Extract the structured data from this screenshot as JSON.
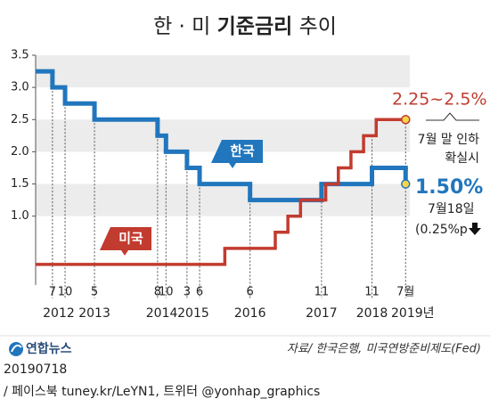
{
  "chart_data": {
    "type": "step",
    "title": [
      "한 · 미",
      "기준금리",
      "추이"
    ],
    "xlim": [
      "2012-03",
      "2019-08"
    ],
    "ylim": [
      0,
      3.5
    ],
    "yticks": [
      {
        "value": 1,
        "label": "1.0"
      },
      1.5,
      {
        "value": 2,
        "label": "2.0"
      },
      2.5,
      {
        "value": 3,
        "label": "3.0"
      },
      3.5
    ],
    "xticks": [
      {
        "value": "2012-07",
        "label": "7"
      },
      {
        "value": "2012-10",
        "label": "10"
      },
      {
        "value": "2013-05",
        "label": "5"
      },
      {
        "value": "2014-08",
        "label": "8"
      },
      {
        "value": "2014-10",
        "label": "10"
      },
      {
        "value": "2015-03",
        "label": "3"
      },
      {
        "value": "2015-06",
        "label": "6"
      },
      {
        "value": "2016-06",
        "label": "6"
      },
      {
        "value": "2017-11",
        "label": "11"
      },
      {
        "value": "2018-11",
        "label": "11"
      },
      {
        "value": "2019-07",
        "label": "7월"
      }
    ],
    "x_year_labels": [
      "2012",
      "2013",
      "2014",
      "2015",
      "2016",
      "2017",
      "2018",
      "2019년"
    ],
    "series": [
      {
        "name": "한국",
        "color": "#2176bd",
        "x": [
          "2012-03",
          "2012-07",
          "2012-10",
          "2013-05",
          "2014-08",
          "2014-10",
          "2015-03",
          "2015-06",
          "2016-06",
          "2017-11",
          "2018-11",
          "2019-07"
        ],
        "values": [
          3.25,
          3.0,
          2.75,
          2.5,
          2.25,
          2.0,
          1.75,
          1.5,
          1.25,
          1.5,
          1.75,
          1.5
        ]
      },
      {
        "name": "미국",
        "color": "#c23b2f",
        "x": [
          "2012-03",
          "2015-12",
          "2016-12",
          "2017-03",
          "2017-06",
          "2017-12",
          "2018-03",
          "2018-06",
          "2018-09",
          "2018-12",
          "2019-07"
        ],
        "values": [
          0.25,
          0.5,
          0.75,
          1.0,
          1.25,
          1.5,
          1.75,
          2.0,
          2.25,
          2.5,
          2.5
        ]
      }
    ],
    "annotations": {
      "us_rate": "2.25~2.5%",
      "us_note": [
        "7월 말 인하",
        "확실시"
      ],
      "kr_rate": "1.50%",
      "kr_date": "7월18일",
      "kr_change": "(0.25%p"
    },
    "source": "자료/ 한국은행, 미국연방준비제도(Fed)"
  },
  "logo": "연합뉴스",
  "date": "20190718",
  "footer": "/ 페이스북 tuney.kr/LeYN1, 트위터 @yonhap_graphics"
}
